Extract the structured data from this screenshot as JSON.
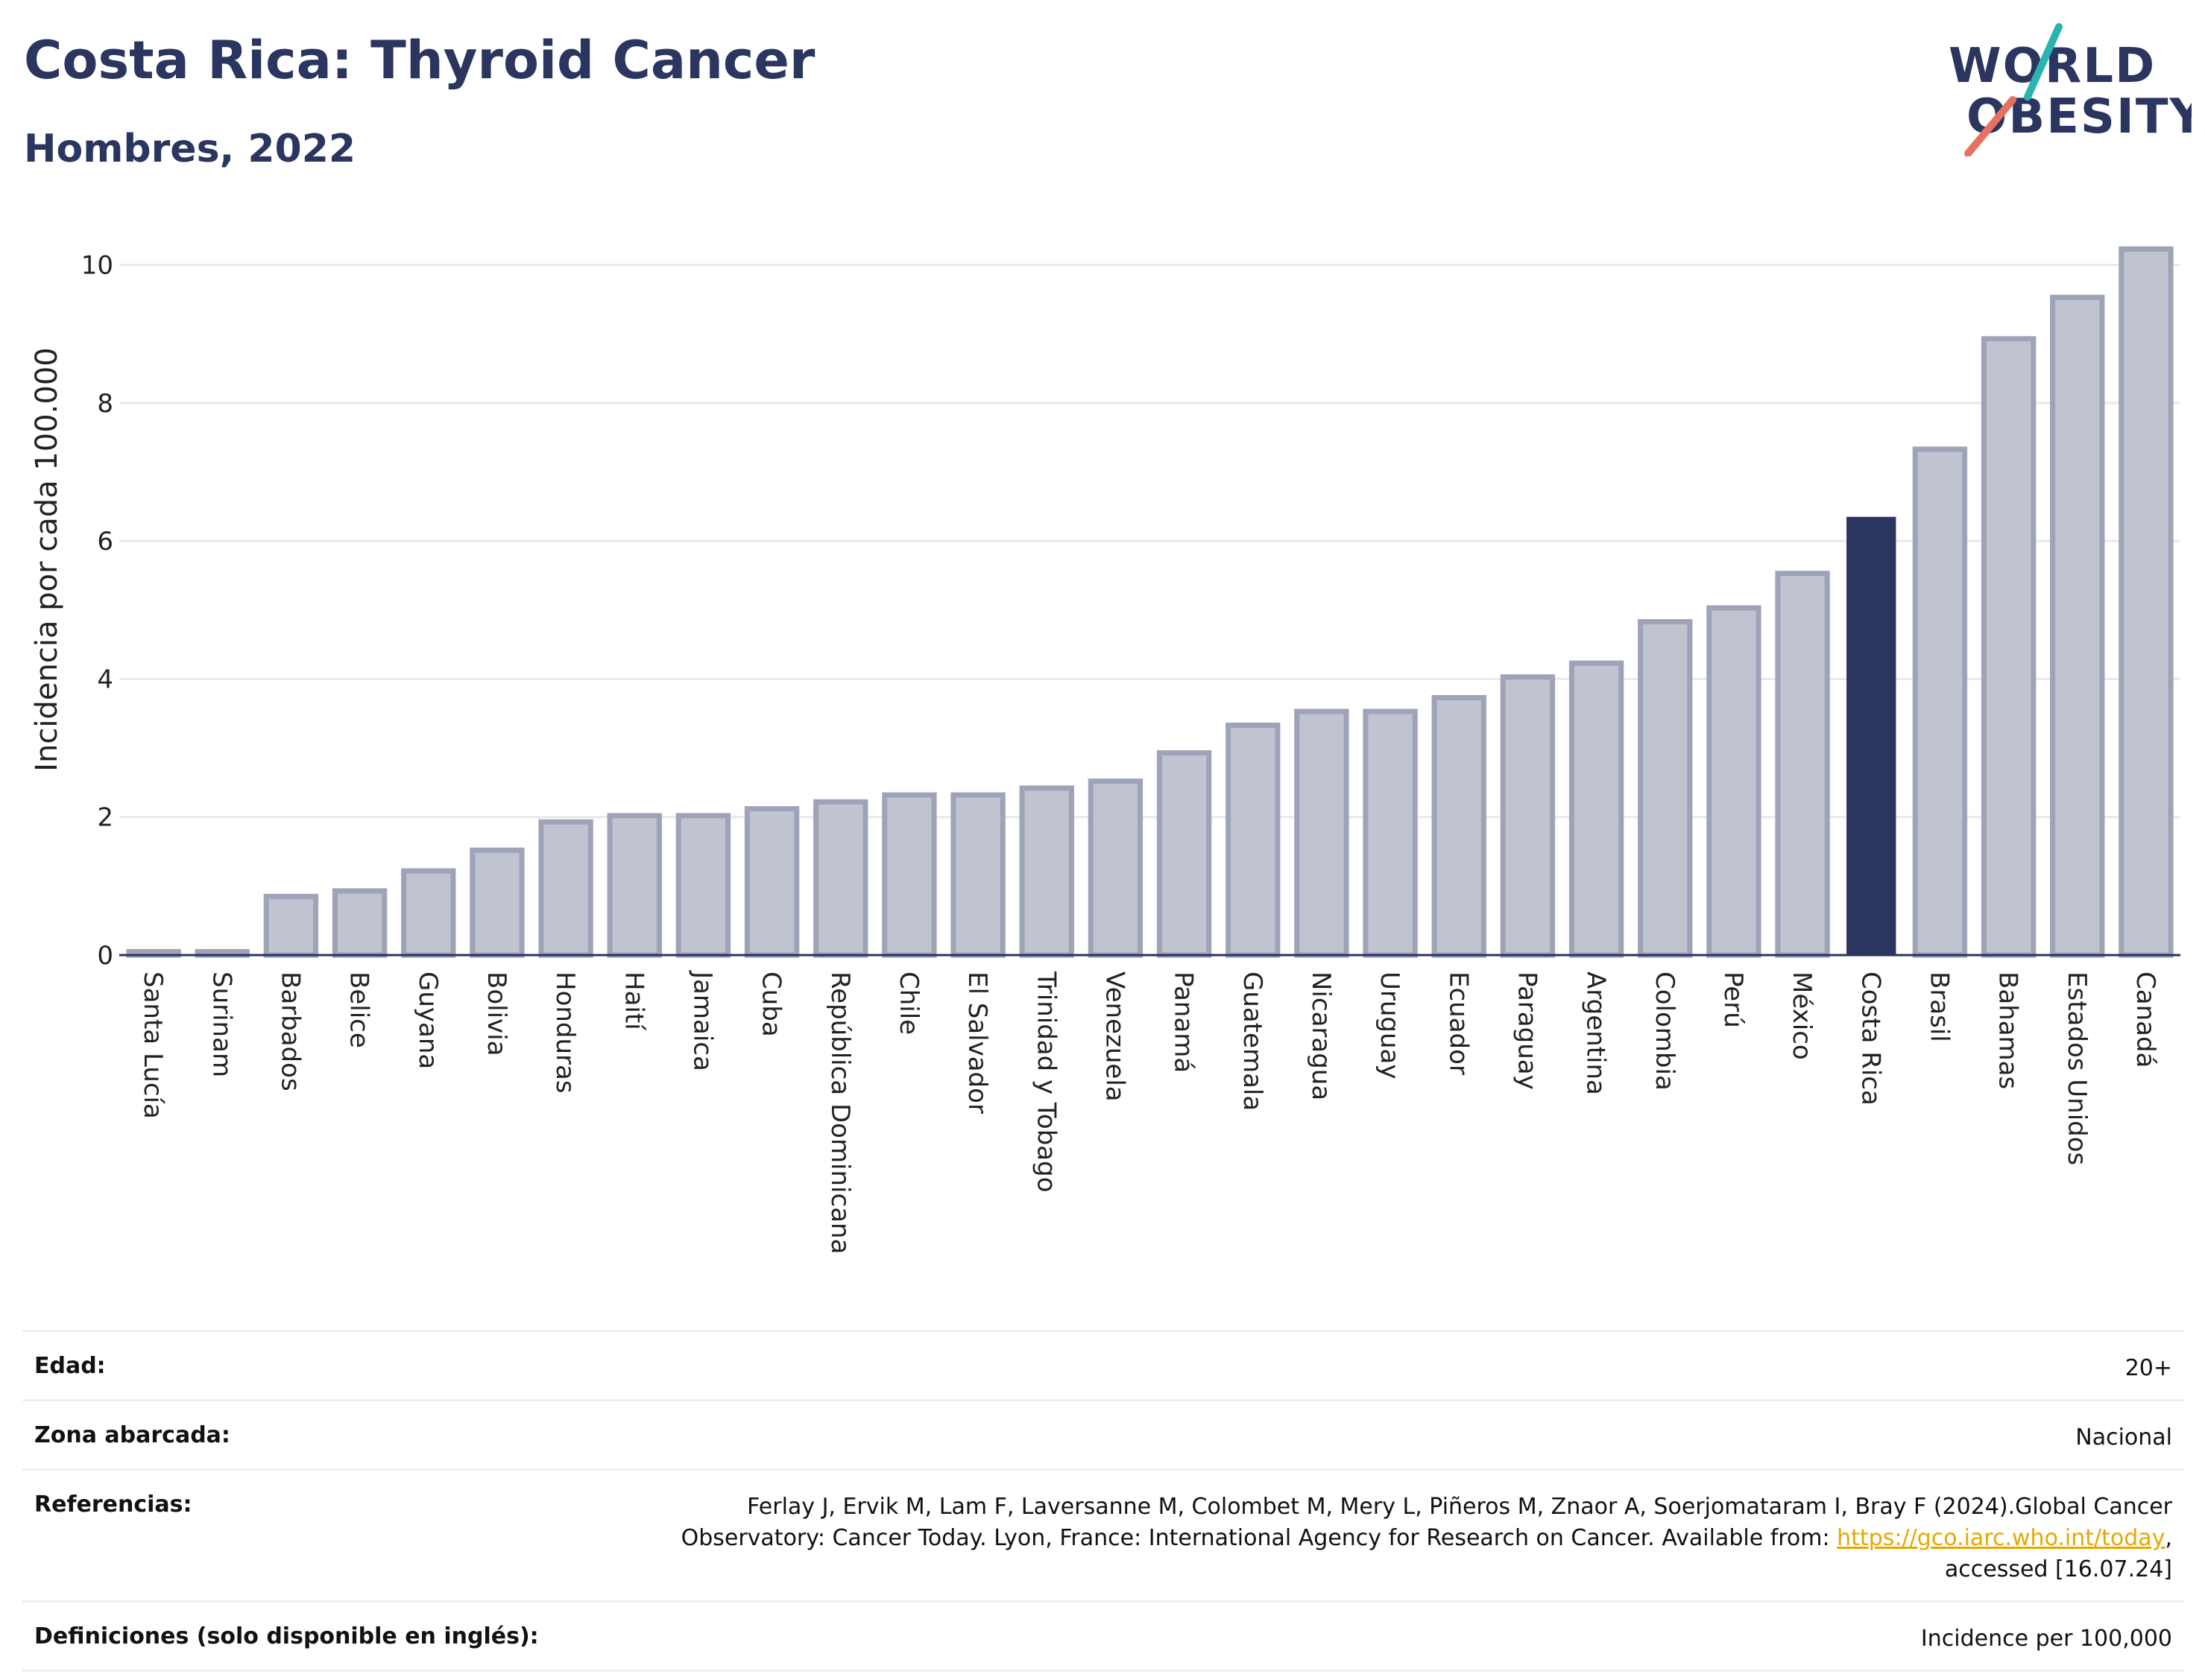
{
  "header": {
    "title": "Costa Rica: Thyroid Cancer",
    "subtitle": "Hombres, 2022",
    "logo_line1": "WORLD",
    "logo_line2": "OBESITY"
  },
  "chart_data": {
    "type": "bar",
    "title": "Costa Rica: Thyroid Cancer",
    "subtitle": "Hombres, 2022",
    "xlabel": "",
    "ylabel": "Incidencia por cada 100.000",
    "ylim": [
      0,
      10.6
    ],
    "yticks": [
      0,
      2,
      4,
      6,
      8,
      10
    ],
    "grid": true,
    "highlight": "Costa Rica",
    "colors": {
      "bar": "#c0c3d0",
      "bar_border": "#9ea3b8",
      "highlight": "#2a3560",
      "grid": "#e8e9ee",
      "axis": "#2a3560"
    },
    "categories": [
      "Santa Lucía",
      "Surinam",
      "Barbados",
      "Belice",
      "Guyana",
      "Bolivia",
      "Honduras",
      "Haití",
      "Jamaica",
      "Cuba",
      "República Dominicana",
      "Chile",
      "El Salvador",
      "Trinidad y Tobago",
      "Venezuela",
      "Panamá",
      "Guatemala",
      "Nicaragua",
      "Uruguay",
      "Ecuador",
      "Paraguay",
      "Argentina",
      "Colombia",
      "Perú",
      "México",
      "Costa Rica",
      "Brasil",
      "Bahamas",
      "Estados Unidos",
      "Canadá"
    ],
    "values": [
      0.05,
      0.05,
      0.85,
      0.93,
      1.22,
      1.52,
      1.93,
      2.02,
      2.02,
      2.12,
      2.22,
      2.32,
      2.32,
      2.42,
      2.52,
      2.93,
      3.33,
      3.53,
      3.53,
      3.73,
      4.03,
      4.23,
      4.83,
      5.03,
      5.53,
      6.35,
      7.33,
      8.93,
      9.53,
      10.23
    ]
  },
  "info": {
    "rows": [
      {
        "label": "Edad:",
        "value": "20+"
      },
      {
        "label": "Zona abarcada:",
        "value": "Nacional"
      },
      {
        "label": "Referencias:",
        "value_pre": "Ferlay J, Ervik M, Lam F, Laversanne M, Colombet M, Mery L, Piñeros M, Znaor A, Soerjomataram I, Bray F (2024).Global Cancer Observatory: Cancer Today. Lyon, France: International Agency for Research on Cancer. Available from: ",
        "link": "https://gco.iarc.who.int/today",
        "value_post": ", accessed [16.07.24]"
      },
      {
        "label": "Definiciones (solo disponible en inglés):",
        "value": "Incidence per 100,000"
      }
    ]
  }
}
